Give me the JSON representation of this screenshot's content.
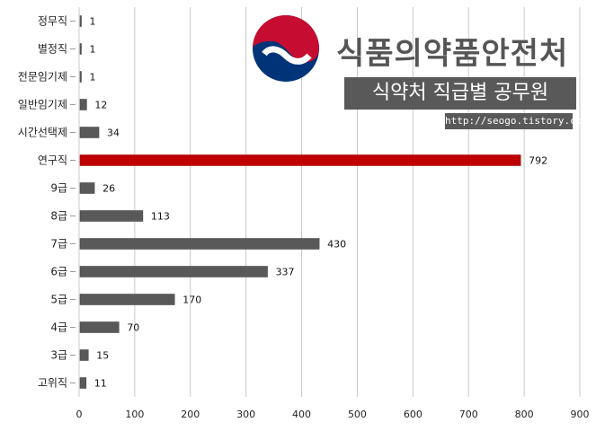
{
  "brand": {
    "name": "식품의약품안전처",
    "emblem_icon": "korea-taegeuk-emblem-icon",
    "emblem_colors": [
      "#c60c30",
      "#003478"
    ]
  },
  "subtitle": "식약처 직급별 공무원",
  "url": "http://seogo.tistory.com",
  "chart_data": {
    "type": "bar",
    "orientation": "horizontal",
    "categories": [
      "정무직",
      "별정직",
      "전문임기제",
      "일반임기제",
      "시간선택제",
      "연구직",
      "9급",
      "8급",
      "7급",
      "6급",
      "5급",
      "4급",
      "3급",
      "고위직"
    ],
    "values": [
      1,
      1,
      1,
      12,
      34,
      792,
      26,
      113,
      430,
      337,
      170,
      70,
      15,
      11
    ],
    "xlim": [
      0,
      900
    ],
    "xticks": [
      0,
      100,
      200,
      300,
      400,
      500,
      600,
      700,
      800,
      900
    ],
    "grid": "vertical",
    "bar_color": "#595959",
    "highlight": {
      "category": "연구직",
      "color": "#c00000"
    },
    "data_labels": true,
    "title": "",
    "xlabel": "",
    "ylabel": ""
  }
}
